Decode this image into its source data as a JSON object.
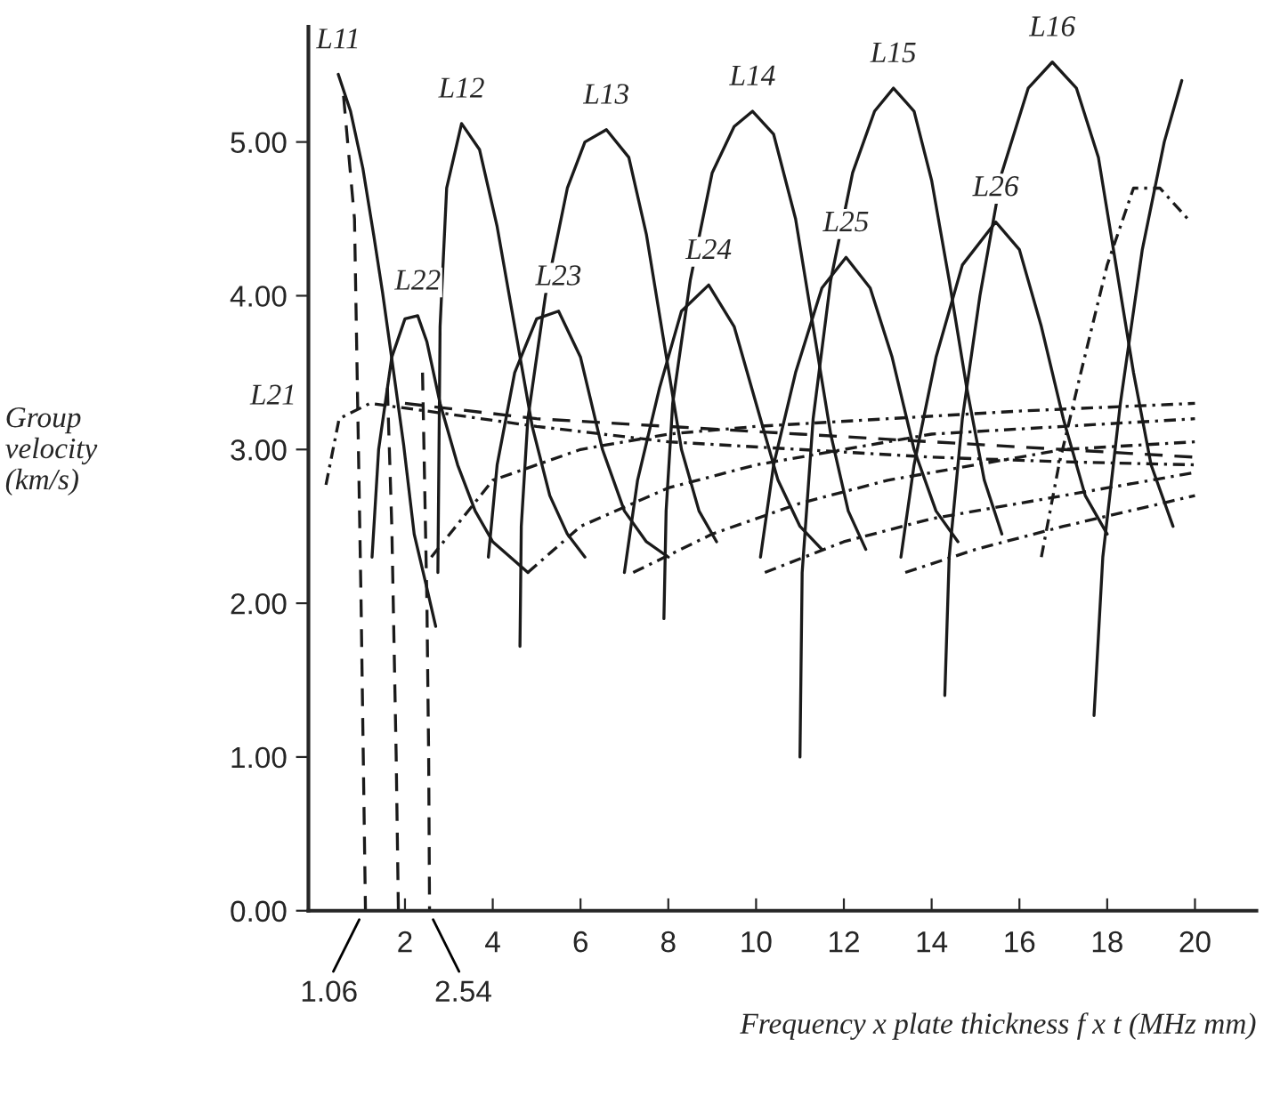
{
  "chart_data": {
    "type": "line",
    "xlabel": "Frequency x plate thickness f x t (MHz mm)",
    "ylabel": "Group\nvelocity\n(km/s)",
    "xlim": [
      -0.2,
      21.4
    ],
    "xticks": [
      2,
      4,
      6,
      8,
      10,
      12,
      14,
      16,
      18,
      20
    ],
    "ylim": [
      0,
      5.75
    ],
    "yticks": [
      {
        "value": 0,
        "label": "0.00"
      },
      {
        "value": 1,
        "label": "1.00"
      },
      {
        "value": 2,
        "label": "2.00"
      },
      {
        "value": 3,
        "label": "3.00"
      },
      {
        "value": 4,
        "label": "4.00"
      },
      {
        "value": 5,
        "label": "5.00"
      }
    ],
    "grid": false,
    "legend": false,
    "series": [
      {
        "color": "#1a1a1a",
        "line_style": "solid",
        "x": [
          0.48,
          0.76,
          1.04,
          1.29,
          1.49,
          1.69,
          1.97,
          2.21,
          2.49,
          2.7
        ],
        "values": [
          5.44,
          5.2,
          4.83,
          4.39,
          4.02,
          3.61,
          3.03,
          2.45,
          2.11,
          1.85
        ]
      },
      {
        "color": "#1a1a1a",
        "line_style": "solid",
        "x": [
          2.75,
          2.8,
          2.95,
          3.29,
          3.7,
          4.1,
          4.5,
          4.9,
          5.3,
          5.7,
          6.1
        ],
        "values": [
          2.2,
          3.8,
          4.7,
          5.12,
          4.95,
          4.45,
          3.8,
          3.15,
          2.7,
          2.45,
          2.3
        ]
      },
      {
        "color": "#1a1a1a",
        "line_style": "solid",
        "x": [
          4.62,
          4.65,
          4.8,
          5.2,
          5.7,
          6.1,
          6.59,
          7.1,
          7.5,
          7.9,
          8.3,
          8.7,
          9.1
        ],
        "values": [
          1.72,
          2.5,
          3.2,
          4.0,
          4.7,
          5.0,
          5.08,
          4.9,
          4.4,
          3.7,
          3.0,
          2.6,
          2.4
        ]
      },
      {
        "color": "#1a1a1a",
        "line_style": "solid",
        "x": [
          7.9,
          7.95,
          8.1,
          8.5,
          9.0,
          9.5,
          9.92,
          10.4,
          10.9,
          11.3,
          11.7,
          12.1,
          12.5
        ],
        "values": [
          1.9,
          2.6,
          3.3,
          4.1,
          4.8,
          5.1,
          5.2,
          5.05,
          4.5,
          3.8,
          3.1,
          2.6,
          2.35
        ]
      },
      {
        "color": "#1a1a1a",
        "line_style": "solid",
        "x": [
          11.0,
          11.05,
          11.3,
          11.7,
          12.2,
          12.7,
          13.13,
          13.6,
          14.0,
          14.4,
          14.8,
          15.2,
          15.6
        ],
        "values": [
          1.0,
          2.2,
          3.2,
          4.1,
          4.8,
          5.2,
          5.35,
          5.2,
          4.75,
          4.1,
          3.4,
          2.8,
          2.45
        ]
      },
      {
        "color": "#1a1a1a",
        "line_style": "solid",
        "x": [
          14.3,
          14.4,
          14.7,
          15.1,
          15.6,
          16.2,
          16.75,
          17.3,
          17.8,
          18.2,
          18.6,
          19.0,
          19.5
        ],
        "values": [
          1.4,
          2.3,
          3.2,
          4.0,
          4.8,
          5.35,
          5.52,
          5.35,
          4.9,
          4.2,
          3.5,
          2.9,
          2.5
        ]
      },
      {
        "color": "#1a1a1a",
        "line_style": "solid",
        "x": [
          17.7,
          17.9,
          18.3,
          18.8,
          19.3,
          19.7
        ],
        "values": [
          1.27,
          2.3,
          3.3,
          4.3,
          5.0,
          5.4
        ]
      },
      {
        "color": "#1a1a1a",
        "line_style": "solid",
        "x": [
          1.25,
          1.4,
          1.7,
          2.0,
          2.29,
          2.5,
          2.8,
          3.2,
          3.6,
          4.0,
          4.4,
          4.8
        ],
        "values": [
          2.3,
          3.0,
          3.6,
          3.85,
          3.87,
          3.7,
          3.3,
          2.9,
          2.6,
          2.4,
          2.3,
          2.2
        ]
      },
      {
        "color": "#1a1a1a",
        "line_style": "solid",
        "x": [
          3.9,
          4.1,
          4.5,
          5.0,
          5.5,
          6.0,
          6.5,
          7.0,
          7.5,
          8.0
        ],
        "values": [
          2.3,
          2.9,
          3.5,
          3.85,
          3.9,
          3.6,
          3.0,
          2.6,
          2.4,
          2.3
        ]
      },
      {
        "color": "#1a1a1a",
        "line_style": "solid",
        "x": [
          7.0,
          7.3,
          7.8,
          8.3,
          8.92,
          9.5,
          10.0,
          10.5,
          11.0,
          11.5
        ],
        "values": [
          2.2,
          2.8,
          3.4,
          3.9,
          4.07,
          3.8,
          3.3,
          2.8,
          2.5,
          2.35
        ]
      },
      {
        "color": "#1a1a1a",
        "line_style": "solid",
        "x": [
          10.1,
          10.4,
          10.9,
          11.5,
          12.05,
          12.6,
          13.1,
          13.6,
          14.1,
          14.6
        ],
        "values": [
          2.3,
          2.9,
          3.5,
          4.05,
          4.25,
          4.05,
          3.6,
          3.0,
          2.6,
          2.4
        ]
      },
      {
        "color": "#1a1a1a",
        "line_style": "solid",
        "x": [
          13.3,
          13.6,
          14.1,
          14.7,
          15.46,
          16.0,
          16.5,
          17.0,
          17.5,
          18.0
        ],
        "values": [
          2.3,
          2.9,
          3.6,
          4.2,
          4.48,
          4.3,
          3.8,
          3.2,
          2.7,
          2.45
        ]
      },
      {
        "color": "#1a1a1a",
        "line_style": "dotted",
        "x": [
          16.5,
          16.9,
          17.4,
          18.0,
          18.6,
          19.2,
          19.9
        ],
        "values": [
          2.3,
          2.9,
          3.5,
          4.2,
          4.7,
          4.7,
          4.48
        ]
      },
      {
        "color": "#1a1a1a",
        "line_style": "dotted",
        "x": [
          0.2,
          0.5,
          1.2,
          2.5,
          5,
          8,
          11,
          14,
          17,
          20
        ],
        "values": [
          2.77,
          3.2,
          3.3,
          3.25,
          3.15,
          3.05,
          3.0,
          2.95,
          2.92,
          2.9
        ]
      },
      {
        "color": "#1a1a1a",
        "line_style": "dashed",
        "x": [
          2.0,
          5,
          8,
          11,
          14,
          17,
          20
        ],
        "values": [
          3.3,
          3.2,
          3.15,
          3.1,
          3.05,
          3.0,
          2.95
        ]
      },
      {
        "color": "#1a1a1a",
        "line_style": "dotted",
        "x": [
          2.6,
          4,
          6,
          8,
          10,
          13,
          16,
          20
        ],
        "values": [
          2.3,
          2.8,
          3.0,
          3.1,
          3.15,
          3.2,
          3.25,
          3.3
        ]
      },
      {
        "color": "#1a1a1a",
        "line_style": "dotted",
        "x": [
          4.8,
          6,
          8,
          10,
          12,
          14,
          17,
          20
        ],
        "values": [
          2.2,
          2.5,
          2.75,
          2.9,
          3.0,
          3.1,
          3.15,
          3.2
        ]
      },
      {
        "color": "#1a1a1a",
        "line_style": "dotted",
        "x": [
          7.2,
          9,
          11,
          13,
          15,
          17,
          20
        ],
        "values": [
          2.2,
          2.45,
          2.65,
          2.8,
          2.9,
          3.0,
          3.05
        ]
      },
      {
        "color": "#1a1a1a",
        "line_style": "dotted",
        "x": [
          10.2,
          12,
          14,
          16,
          18,
          20
        ],
        "values": [
          2.2,
          2.4,
          2.55,
          2.65,
          2.75,
          2.85
        ]
      },
      {
        "color": "#1a1a1a",
        "line_style": "dotted",
        "x": [
          13.4,
          15,
          17,
          18.5,
          20
        ],
        "values": [
          2.2,
          2.35,
          2.5,
          2.6,
          2.7
        ]
      },
      {
        "color": "#1a1a1a",
        "line_style": "dashed",
        "x": [
          0.6,
          0.85,
          1.0,
          1.06,
          1.1
        ],
        "values": [
          5.3,
          4.5,
          2.0,
          0.8,
          0
        ]
      },
      {
        "color": "#1a1a1a",
        "line_style": "dashed",
        "x": [
          1.6,
          1.7,
          1.8,
          1.85
        ],
        "values": [
          3.4,
          2.5,
          1.0,
          0
        ]
      },
      {
        "color": "#1a1a1a",
        "line_style": "dashed",
        "x": [
          2.4,
          2.5,
          2.54,
          2.56
        ],
        "values": [
          3.5,
          2.0,
          1.0,
          0
        ]
      }
    ],
    "annotations": [
      {
        "text": "L11",
        "x": 0.48,
        "y": 5.44
      },
      {
        "text": "L12",
        "x": 3.29,
        "y": 5.12
      },
      {
        "text": "L13",
        "x": 6.59,
        "y": 5.08
      },
      {
        "text": "L14",
        "x": 9.92,
        "y": 5.2
      },
      {
        "text": "L15",
        "x": 13.13,
        "y": 5.35
      },
      {
        "text": "L16",
        "x": 16.75,
        "y": 5.52
      },
      {
        "text": "L21",
        "x": 0.2,
        "y": 2.77
      },
      {
        "text": "L22",
        "x": 2.29,
        "y": 3.87
      },
      {
        "text": "L23",
        "x": 5.5,
        "y": 3.9
      },
      {
        "text": "L24",
        "x": 8.92,
        "y": 4.07
      },
      {
        "text": "L25",
        "x": 12.05,
        "y": 4.25
      },
      {
        "text": "L26",
        "x": 15.46,
        "y": 4.48
      },
      {
        "text": "1.06",
        "x": 1.06,
        "y": 0
      },
      {
        "text": "2.54",
        "x": 2.54,
        "y": 0
      }
    ]
  }
}
